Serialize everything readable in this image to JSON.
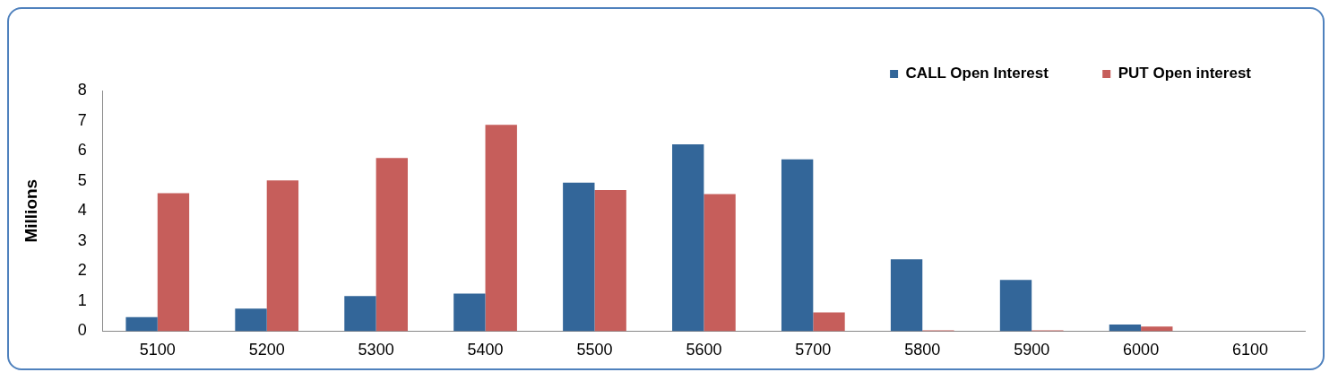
{
  "chart_data": {
    "type": "bar",
    "ylabel": "Millions",
    "categories": [
      "5100",
      "5200",
      "5300",
      "5400",
      "5500",
      "5600",
      "5700",
      "5800",
      "5900",
      "6000",
      "6100"
    ],
    "series": [
      {
        "name": "CALL Open Interest",
        "color": "#336699",
        "values": [
          0.47,
          0.75,
          1.17,
          1.25,
          4.94,
          6.21,
          5.71,
          2.39,
          1.7,
          0.22,
          0
        ]
      },
      {
        "name": "PUT Open interest",
        "color": "#c65e5b",
        "values": [
          4.59,
          5.01,
          5.76,
          6.86,
          4.69,
          4.56,
          0.62,
          0.03,
          0.03,
          0.15,
          0
        ]
      }
    ],
    "ylim": [
      0,
      8
    ],
    "yticks": [
      0,
      1,
      2,
      3,
      4,
      5,
      6,
      7,
      8
    ],
    "grid": false,
    "legend": "top right"
  }
}
